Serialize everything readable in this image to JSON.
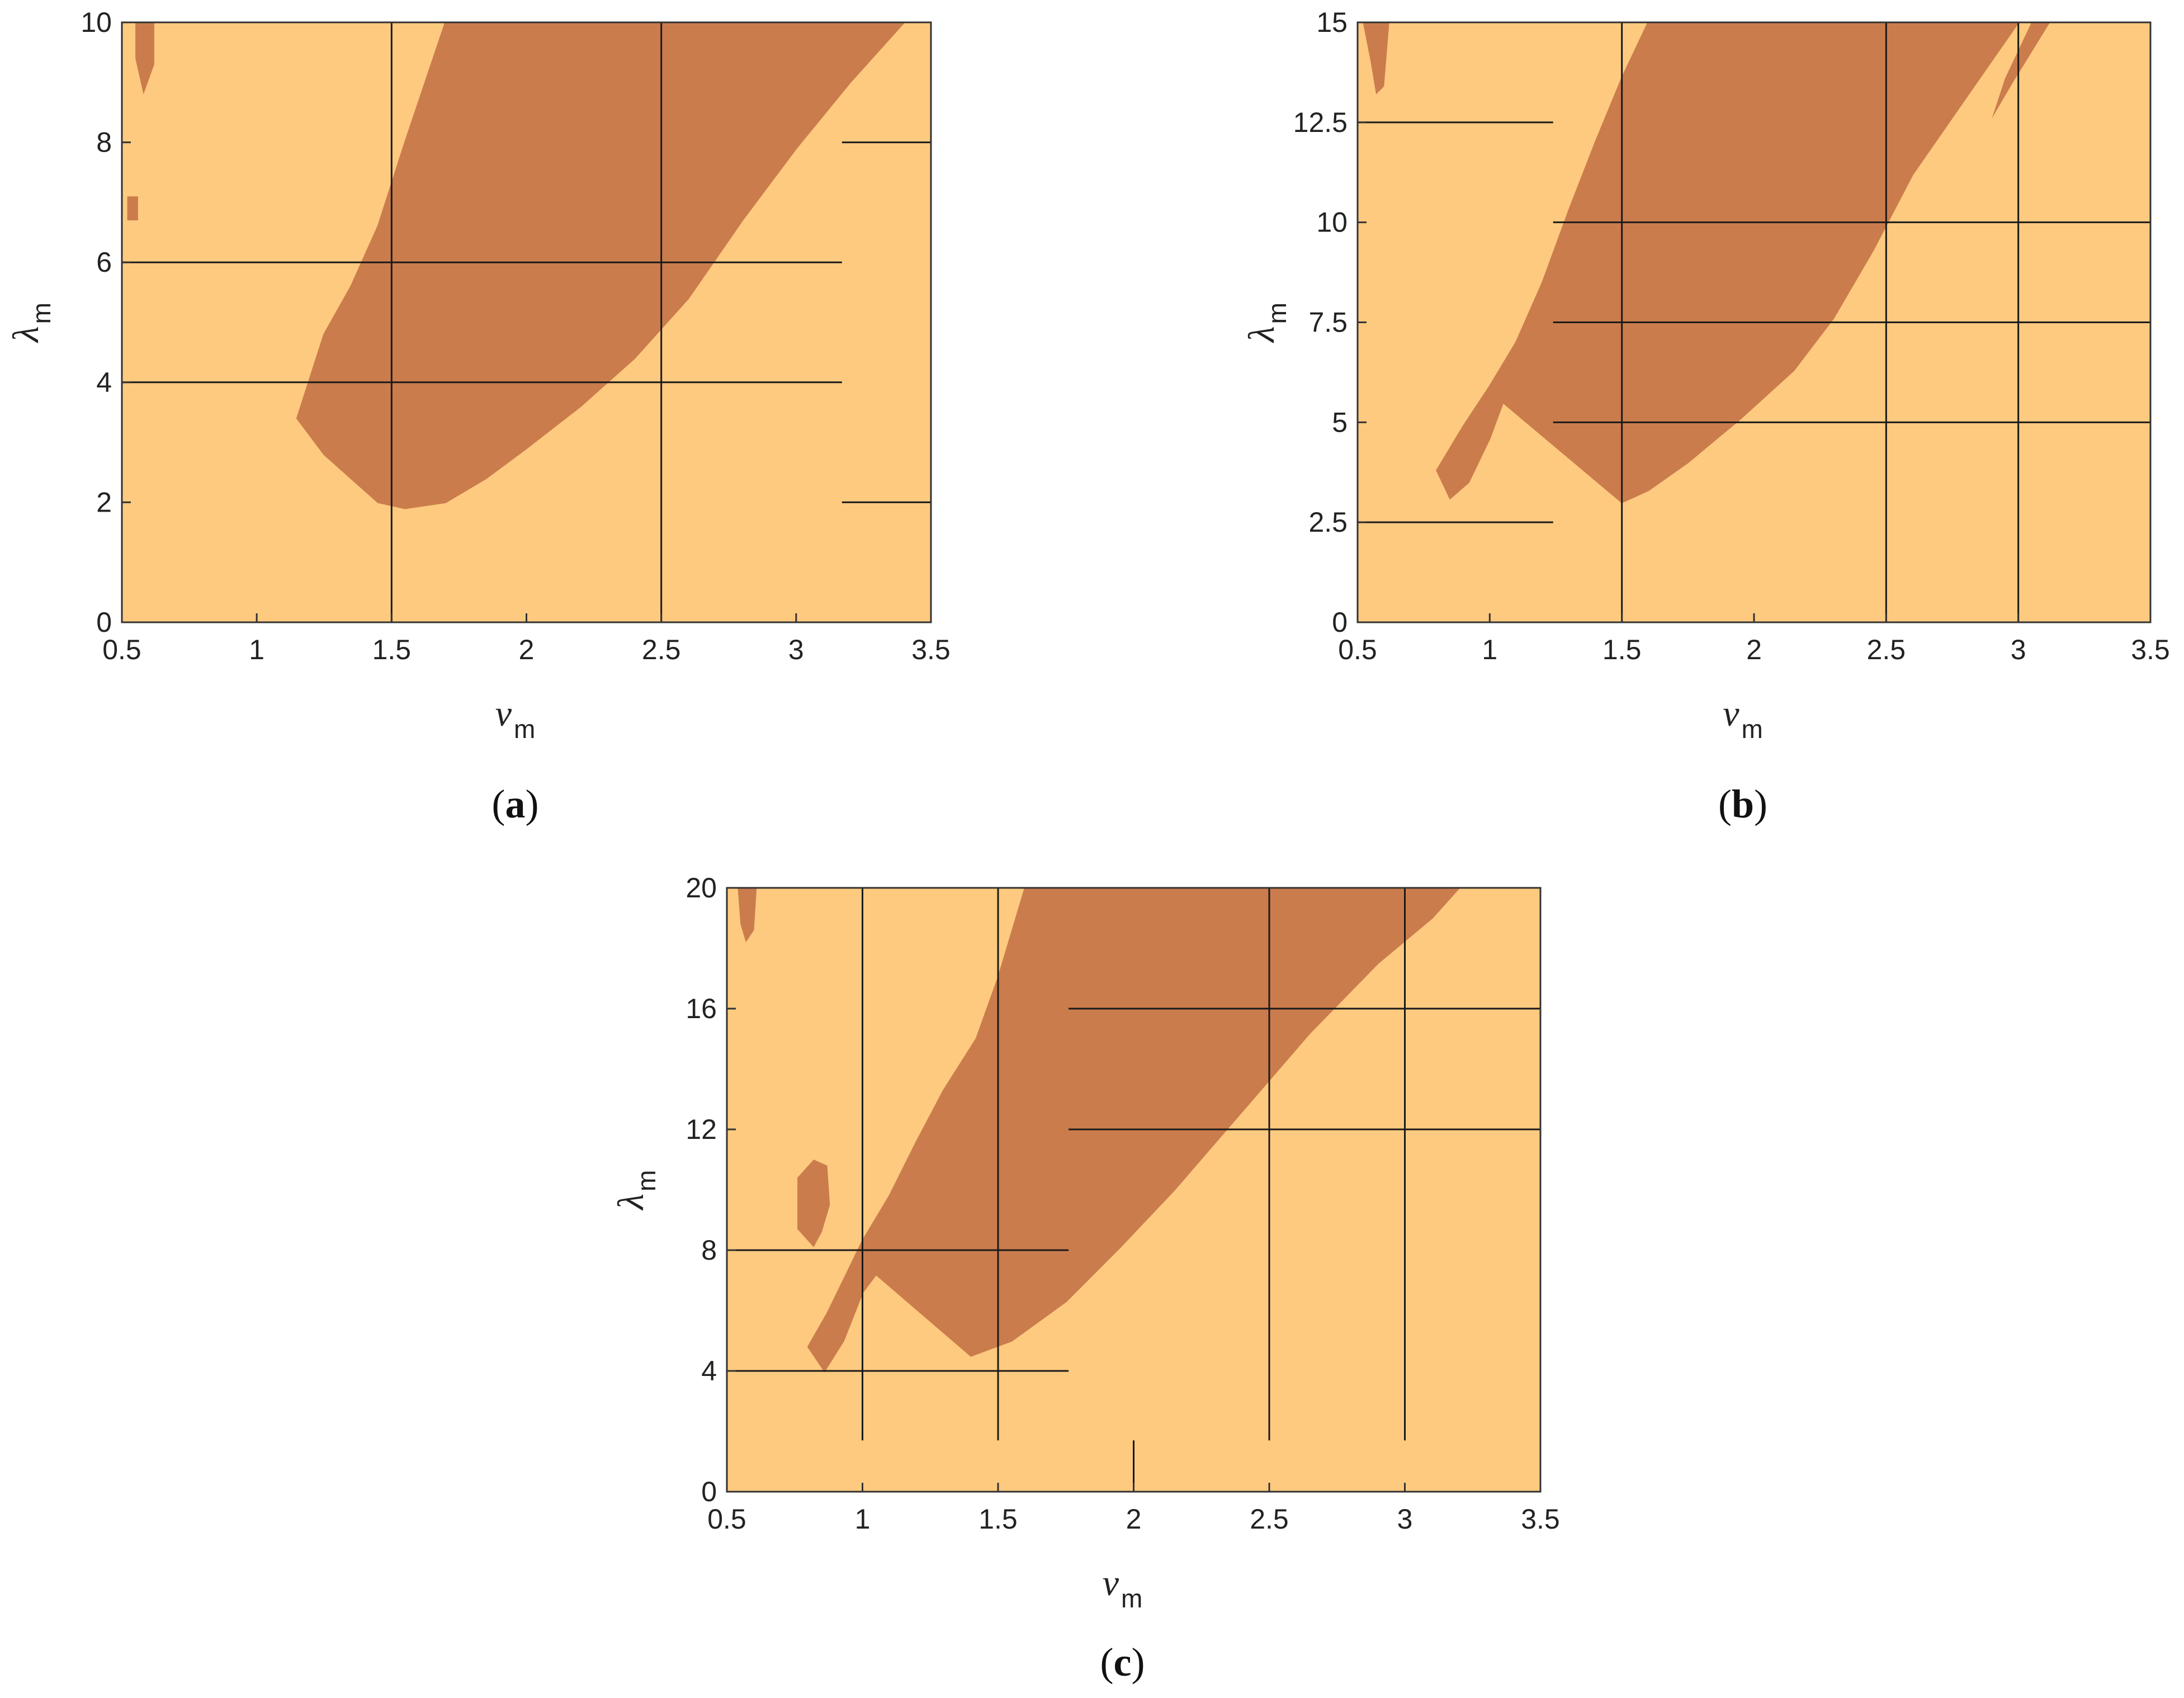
{
  "colors": {
    "background_region": "#fdca7f",
    "unstable_region": "#cb7c4c",
    "lines": "#1a1a1a"
  },
  "chart_data": [
    {
      "type": "heatmap",
      "panel_label": "a",
      "xlabel": "ν",
      "xlabel_sub": "m",
      "ylabel": "λ",
      "ylabel_sub": "m",
      "xlim": [
        0.5,
        3.5
      ],
      "ylim": [
        0,
        10
      ],
      "xticks": [
        "0.5",
        "1",
        "1.5",
        "2",
        "2.5",
        "3",
        "3.5"
      ],
      "yticks": [
        "0",
        "2",
        "4",
        "6",
        "8",
        "10"
      ],
      "region_outline": [
        [
          1.15,
          3.4
        ],
        [
          1.25,
          2.8
        ],
        [
          1.35,
          2.4
        ],
        [
          1.45,
          2.0
        ],
        [
          1.55,
          1.9
        ],
        [
          1.7,
          2.0
        ],
        [
          1.85,
          2.4
        ],
        [
          2.0,
          2.9
        ],
        [
          2.2,
          3.6
        ],
        [
          2.4,
          4.4
        ],
        [
          2.6,
          5.4
        ],
        [
          2.8,
          6.7
        ],
        [
          3.0,
          7.9
        ],
        [
          3.2,
          9.0
        ],
        [
          3.4,
          10.0
        ],
        [
          1.7,
          10.0
        ],
        [
          1.55,
          8.0
        ],
        [
          1.45,
          6.6
        ],
        [
          1.35,
          5.6
        ],
        [
          1.25,
          4.8
        ],
        [
          1.2,
          4.1
        ]
      ],
      "extra_patches": [
        [
          [
            0.55,
            10.0
          ],
          [
            0.62,
            10.0
          ],
          [
            0.62,
            9.3
          ],
          [
            0.58,
            8.8
          ],
          [
            0.55,
            9.4
          ]
        ],
        [
          [
            0.52,
            7.1
          ],
          [
            0.56,
            7.1
          ],
          [
            0.56,
            6.7
          ],
          [
            0.52,
            6.7
          ]
        ]
      ],
      "hlines": [
        {
          "y": 6,
          "x0": 0.5,
          "x1": 3.17
        },
        {
          "y": 4,
          "x0": 0.5,
          "x1": 3.17
        },
        {
          "y": 8,
          "x0": 3.17,
          "x1": 3.5
        },
        {
          "y": 2,
          "x0": 3.17,
          "x1": 3.5
        }
      ],
      "vlines": [
        {
          "x": 1.5,
          "y0": 0,
          "y1": 10
        },
        {
          "x": 2.5,
          "y0": 0,
          "y1": 10
        }
      ]
    },
    {
      "type": "heatmap",
      "panel_label": "b",
      "xlabel": "ν",
      "xlabel_sub": "m",
      "ylabel": "λ",
      "ylabel_sub": "m",
      "xlim": [
        0.5,
        3.5
      ],
      "ylim": [
        0,
        15
      ],
      "xticks": [
        "0.5",
        "1",
        "1.5",
        "2",
        "2.5",
        "3",
        "3.5"
      ],
      "yticks": [
        "0",
        "2.5",
        "5",
        "7.5",
        "10",
        "12.5",
        "15"
      ],
      "region_outline": [
        [
          0.8,
          3.8
        ],
        [
          0.85,
          3.1
        ],
        [
          0.92,
          3.5
        ],
        [
          1.0,
          4.6
        ],
        [
          1.05,
          5.5
        ],
        [
          1.5,
          3.0
        ],
        [
          1.6,
          3.3
        ],
        [
          1.75,
          4.0
        ],
        [
          1.95,
          5.1
        ],
        [
          2.15,
          6.3
        ],
        [
          2.3,
          7.6
        ],
        [
          2.45,
          9.3
        ],
        [
          2.6,
          11.2
        ],
        [
          2.8,
          13.1
        ],
        [
          3.0,
          15.0
        ],
        [
          1.6,
          15.0
        ],
        [
          1.5,
          13.6
        ],
        [
          1.4,
          12.0
        ],
        [
          1.3,
          10.3
        ],
        [
          1.2,
          8.5
        ],
        [
          1.1,
          7.0
        ],
        [
          1.0,
          5.9
        ],
        [
          0.9,
          4.9
        ]
      ],
      "extra_patches": [
        [
          [
            0.52,
            15.0
          ],
          [
            0.62,
            15.0
          ],
          [
            0.6,
            13.4
          ],
          [
            0.57,
            13.2
          ],
          [
            0.55,
            14.0
          ]
        ],
        [
          [
            3.05,
            15.0
          ],
          [
            3.12,
            15.0
          ],
          [
            2.98,
            13.5
          ],
          [
            2.9,
            12.6
          ],
          [
            2.95,
            13.6
          ]
        ]
      ],
      "hlines": [
        {
          "y": 12.5,
          "x0": 0.5,
          "x1": 1.24
        },
        {
          "y": 2.5,
          "x0": 0.5,
          "x1": 1.24
        },
        {
          "y": 10,
          "x0": 1.24,
          "x1": 3.5
        },
        {
          "y": 7.5,
          "x0": 1.24,
          "x1": 3.5
        },
        {
          "y": 5,
          "x0": 1.24,
          "x1": 3.5
        }
      ],
      "vlines": [
        {
          "x": 1.5,
          "y0": 0,
          "y1": 15
        },
        {
          "x": 2.5,
          "y0": 0,
          "y1": 15
        },
        {
          "x": 3.0,
          "y0": 0,
          "y1": 15
        }
      ]
    },
    {
      "type": "heatmap",
      "panel_label": "c",
      "xlabel": "ν",
      "xlabel_sub": "m",
      "ylabel": "λ",
      "ylabel_sub": "m",
      "xlim": [
        0.5,
        3.5
      ],
      "ylim": [
        0,
        20
      ],
      "xticks": [
        "0.5",
        "1",
        "1.5",
        "2",
        "2.5",
        "3",
        "3.5"
      ],
      "yticks": [
        "0",
        "4",
        "8",
        "12",
        "16",
        "20"
      ],
      "region_outline": [
        [
          0.8,
          4.8
        ],
        [
          0.86,
          4.0
        ],
        [
          0.93,
          5.0
        ],
        [
          1.0,
          6.6
        ],
        [
          1.05,
          7.2
        ],
        [
          1.4,
          4.5
        ],
        [
          1.55,
          5.0
        ],
        [
          1.75,
          6.3
        ],
        [
          1.95,
          8.1
        ],
        [
          2.15,
          10.0
        ],
        [
          2.4,
          12.6
        ],
        [
          2.65,
          15.2
        ],
        [
          2.9,
          17.5
        ],
        [
          3.1,
          19.0
        ],
        [
          3.2,
          20.0
        ],
        [
          1.6,
          20.0
        ],
        [
          1.5,
          17.0
        ],
        [
          1.42,
          15.0
        ],
        [
          1.3,
          13.3
        ],
        [
          1.2,
          11.6
        ],
        [
          1.1,
          9.8
        ],
        [
          1.0,
          8.3
        ],
        [
          0.93,
          7.0
        ],
        [
          0.87,
          5.9
        ]
      ],
      "extra_patches": [
        [
          [
            0.76,
            10.4
          ],
          [
            0.82,
            11.0
          ],
          [
            0.87,
            10.8
          ],
          [
            0.88,
            9.5
          ],
          [
            0.85,
            8.6
          ],
          [
            0.82,
            8.1
          ],
          [
            0.76,
            8.7
          ]
        ],
        [
          [
            0.54,
            20.0
          ],
          [
            0.61,
            20.0
          ],
          [
            0.6,
            18.6
          ],
          [
            0.57,
            18.2
          ],
          [
            0.55,
            18.8
          ]
        ]
      ],
      "hlines": [
        {
          "y": 16,
          "x0": 1.76,
          "x1": 3.5
        },
        {
          "y": 12,
          "x0": 1.76,
          "x1": 3.5
        },
        {
          "y": 8,
          "x0": 0.5,
          "x1": 1.76
        },
        {
          "y": 4,
          "x0": 0.5,
          "x1": 1.76
        }
      ],
      "vlines": [
        {
          "x": 1.0,
          "y0": 1.7,
          "y1": 20
        },
        {
          "x": 1.5,
          "y0": 1.7,
          "y1": 20
        },
        {
          "x": 2.5,
          "y0": 1.7,
          "y1": 20
        },
        {
          "x": 3.0,
          "y0": 1.7,
          "y1": 20
        },
        {
          "x": 2.0,
          "y0": 0,
          "y1": 1.7
        }
      ]
    }
  ]
}
